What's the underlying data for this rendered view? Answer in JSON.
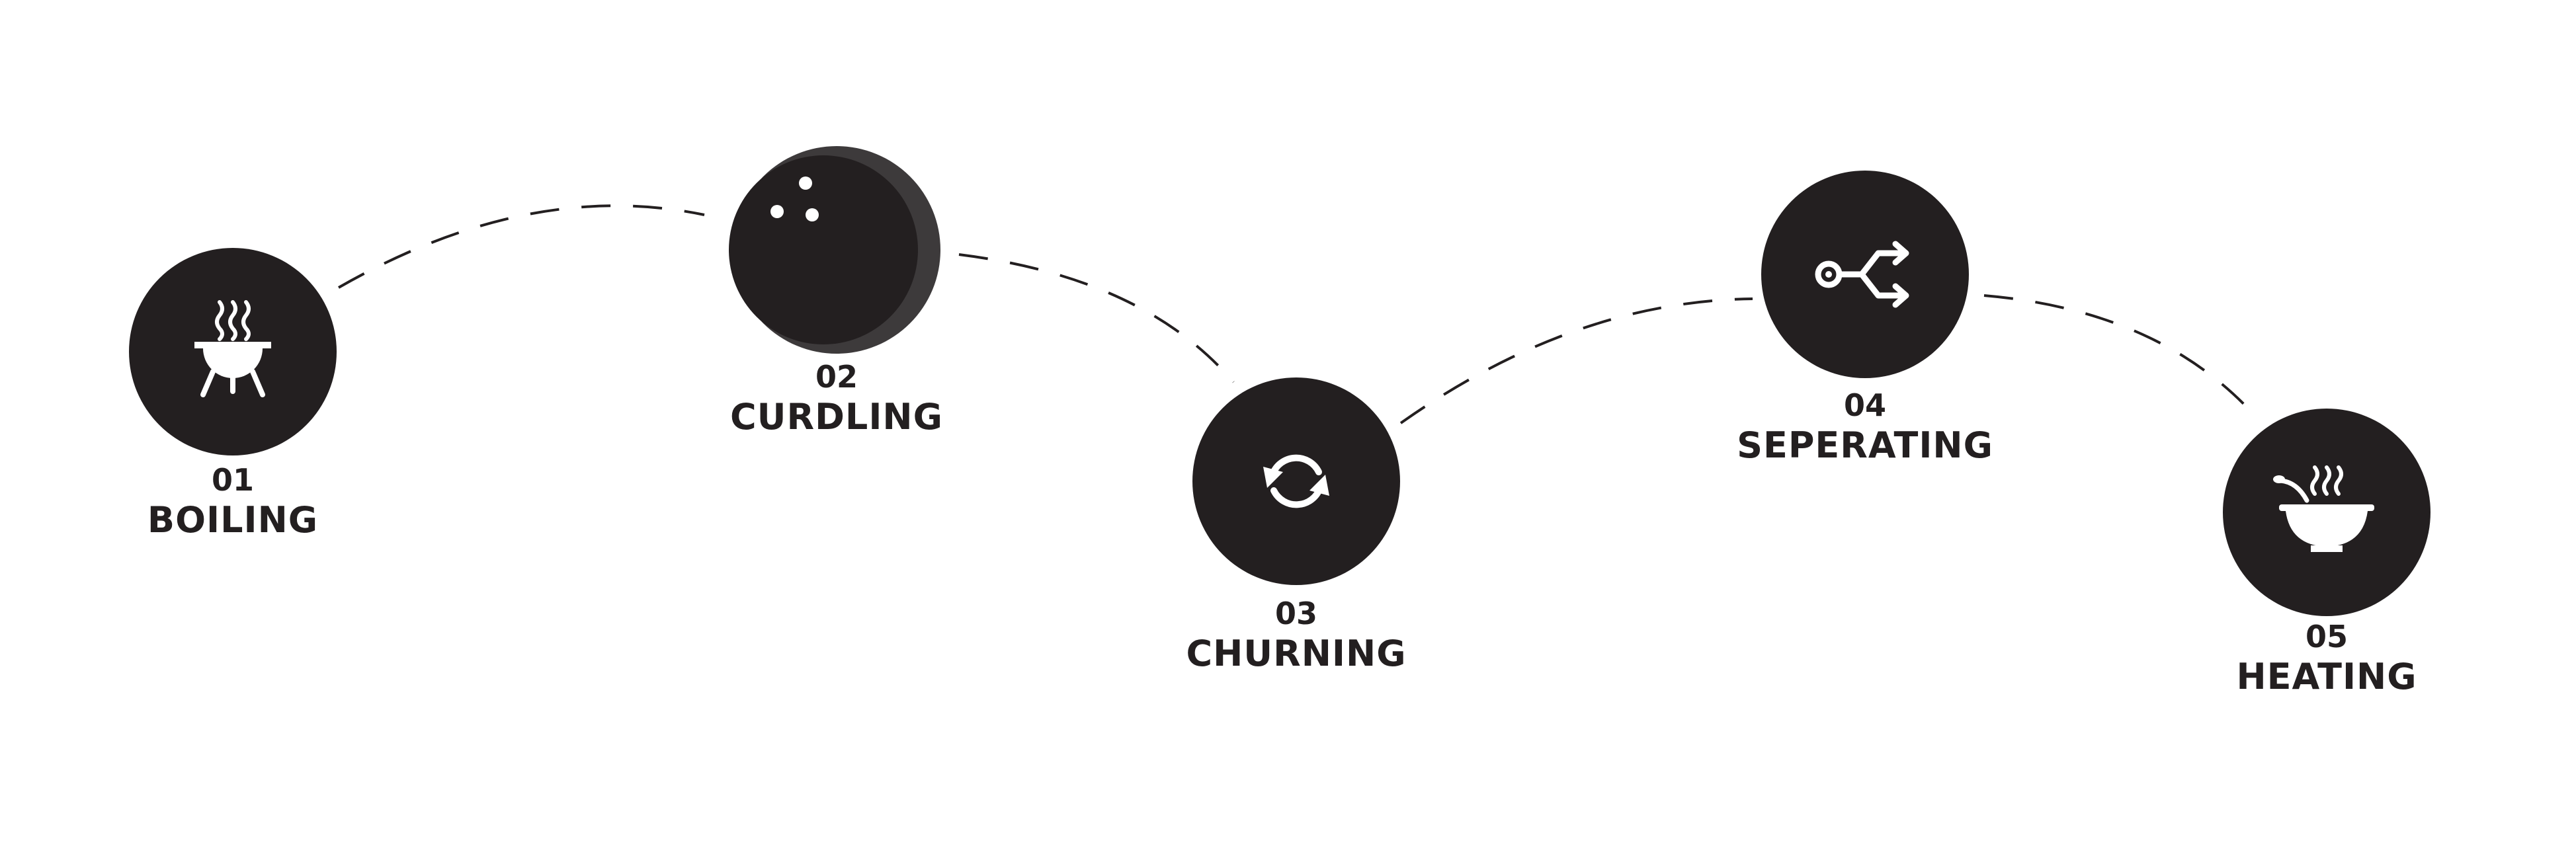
{
  "diagram": {
    "colors": {
      "circle": "#231f20",
      "circle_shade": "#3d3a3b",
      "icon": "#ffffff",
      "connector": "#231f20",
      "text": "#231f20"
    },
    "steps": [
      {
        "number": "01",
        "label": "BOILING",
        "icon": "grill-steam-icon"
      },
      {
        "number": "02",
        "label": "CURDLING",
        "icon": "curd-ball-icon"
      },
      {
        "number": "03",
        "label": "CHURNING",
        "icon": "rotate-arrows-icon"
      },
      {
        "number": "04",
        "label": "SEPERATING",
        "icon": "split-arrows-icon"
      },
      {
        "number": "05",
        "label": "HEATING",
        "icon": "steaming-bowl-icon"
      }
    ]
  }
}
